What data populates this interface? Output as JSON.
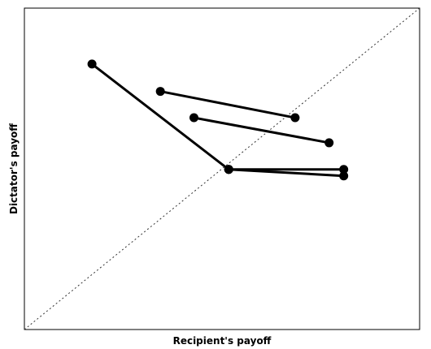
{
  "chart_data": {
    "type": "scatter",
    "title": "",
    "xlabel": "Recipient's payoff",
    "ylabel": "Dictator's payoff",
    "xlim": [
      0,
      100
    ],
    "ylim": [
      0,
      100
    ],
    "grid": false,
    "legend": "none",
    "reference_line": {
      "style": "dotted",
      "equation": "y = x"
    },
    "segments": [
      {
        "from": {
          "x": 17.1,
          "y": 82.6
        },
        "to": {
          "x": 51.7,
          "y": 49.8
        }
      },
      {
        "from": {
          "x": 34.4,
          "y": 74.1
        },
        "to": {
          "x": 68.5,
          "y": 65.9
        }
      },
      {
        "from": {
          "x": 42.9,
          "y": 65.9
        },
        "to": {
          "x": 77.1,
          "y": 58.1
        }
      },
      {
        "from": {
          "x": 51.7,
          "y": 49.8
        },
        "to": {
          "x": 80.8,
          "y": 49.8
        }
      },
      {
        "from": {
          "x": 51.7,
          "y": 49.8
        },
        "to": {
          "x": 80.8,
          "y": 47.8
        }
      }
    ],
    "colors": {
      "line": "#000000",
      "frame": "#000000",
      "reference": "#333333"
    }
  }
}
